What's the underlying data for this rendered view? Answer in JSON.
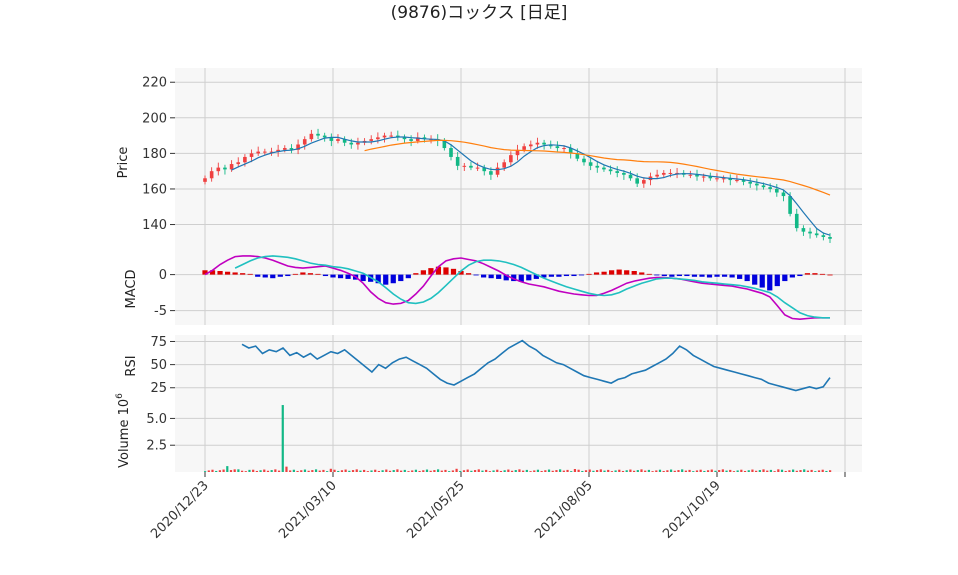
{
  "chart_data": {
    "type": "candlestick",
    "title": "(9876)コックス [日足]",
    "x_tick_labels": [
      "2020/12/23",
      "2021/03/10",
      "2021/05/25",
      "2021/08/05",
      "2021/10/19"
    ],
    "colors": {
      "up": "#ef4040",
      "down": "#12b886",
      "ma_short": "#1f77b4",
      "ma_long": "#ff7f0e",
      "macd": "#c000c0",
      "signal": "#20c0c0",
      "hist_pos": "#dd0000",
      "hist_neg": "#0000dd",
      "rsi": "#1f77b4"
    },
    "panels": {
      "price": {
        "ylabel": "Price",
        "ylim": [
          124,
          228
        ],
        "yticks": [
          140,
          160,
          180,
          200,
          220
        ],
        "series": {
          "close": [
            166,
            170,
            172,
            171,
            174,
            175,
            178,
            180,
            181,
            181,
            181,
            182,
            183,
            182,
            185,
            188,
            191,
            190,
            189,
            187,
            188,
            186,
            185,
            186,
            187,
            188,
            189,
            190,
            190,
            189,
            188,
            187,
            189,
            188,
            188,
            187,
            183,
            178,
            173,
            173,
            172,
            172,
            170,
            168,
            172,
            175,
            179,
            182,
            184,
            185,
            186,
            185,
            184,
            183,
            183,
            180,
            177,
            175,
            173,
            172,
            171,
            170,
            169,
            168,
            166,
            163,
            165,
            167,
            168,
            169,
            169,
            169,
            168,
            168,
            167,
            167,
            166,
            166,
            166,
            165,
            165,
            164,
            163,
            162,
            161,
            160,
            158,
            156,
            146,
            138,
            136,
            135,
            134,
            133,
            132
          ]
        }
      },
      "macd": {
        "ylabel": "MACD",
        "ylim": [
          -7,
          3
        ],
        "yticks": [
          -5,
          0
        ],
        "series": {
          "macd": [
            0,
            0.6,
            1.4,
            2,
            2.5,
            2.6,
            2.6,
            2.5,
            2.3,
            2,
            1.6,
            1.2,
            1,
            0.9,
            1,
            1.1,
            1.2,
            0.9,
            0.6,
            0.2,
            -0.3,
            -1.2,
            -2.4,
            -3.3,
            -3.9,
            -4.1,
            -4,
            -3.6,
            -2.7,
            -1.6,
            -0.2,
            1.1,
            1.9,
            2.2,
            2.3,
            2.1,
            1.9,
            1.5,
            1,
            0.5,
            -0.1,
            -0.6,
            -1,
            -1.3,
            -1.5,
            -1.7,
            -2,
            -2.3,
            -2.5,
            -2.7,
            -2.8,
            -2.9,
            -2.9,
            -2.6,
            -2.2,
            -1.7,
            -1.2,
            -0.9,
            -0.7,
            -0.5,
            -0.4,
            -0.4,
            -0.5,
            -0.6,
            -0.8,
            -1,
            -1.2,
            -1.3,
            -1.4,
            -1.5,
            -1.6,
            -1.8,
            -2,
            -2.3,
            -2.6,
            -3.1,
            -4.3,
            -5.6,
            -6.1,
            -6.2,
            -6.1,
            -6.0,
            -6.0,
            -6.0
          ],
          "signal": [
            null,
            null,
            null,
            null,
            0.9,
            1.4,
            1.9,
            2.3,
            2.5,
            2.6,
            2.5,
            2.4,
            2.2,
            1.9,
            1.6,
            1.4,
            1.3,
            1.1,
            1,
            0.8,
            0.5,
            0.2,
            -0.4,
            -1,
            -1.8,
            -2.7,
            -3.4,
            -3.9,
            -4,
            -3.8,
            -3.3,
            -2.5,
            -1.5,
            -0.5,
            0.5,
            1.3,
            1.8,
            2,
            2,
            1.9,
            1.7,
            1.4,
            1,
            0.5,
            0,
            -0.5,
            -0.9,
            -1.3,
            -1.7,
            -2,
            -2.3,
            -2.6,
            -2.8,
            -2.9,
            -2.8,
            -2.5,
            -2,
            -1.6,
            -1.2,
            -0.9,
            -0.6,
            -0.5,
            -0.5,
            -0.6,
            -0.7,
            -0.8,
            -1,
            -1.1,
            -1.2,
            -1.3,
            -1.4,
            -1.5,
            -1.7,
            -1.9,
            -2.2,
            -2.5,
            -3.1,
            -3.9,
            -4.6,
            -5.3,
            -5.7,
            -5.9,
            -6.0,
            -6.0
          ],
          "hist": [
            0.6,
            0.6,
            0.5,
            0.4,
            0.3,
            0.2,
            0.1,
            -0.3,
            -0.4,
            -0.5,
            -0.3,
            -0.2,
            0.1,
            0.3,
            0.2,
            0.1,
            -0.2,
            -0.4,
            -0.5,
            -0.6,
            -0.7,
            -0.9,
            -1,
            -1.2,
            -1.4,
            -1.2,
            -0.9,
            -0.5,
            0.2,
            0.6,
            0.9,
            1.1,
            1,
            0.8,
            0.5,
            0.2,
            -0.1,
            -0.4,
            -0.5,
            -0.6,
            -0.8,
            -0.9,
            -1,
            -0.8,
            -0.6,
            -0.4,
            -0.3,
            -0.3,
            -0.2,
            -0.2,
            -0.1,
            0.1,
            0.3,
            0.4,
            0.6,
            0.7,
            0.6,
            0.5,
            0.3,
            0.1,
            -0.1,
            -0.2,
            -0.3,
            -0.2,
            -0.2,
            -0.3,
            -0.3,
            -0.4,
            -0.3,
            -0.3,
            -0.4,
            -0.6,
            -0.9,
            -1.4,
            -1.8,
            -2.2,
            -1.6,
            -0.9,
            -0.4,
            -0.2,
            0.2,
            0.2,
            0.1,
            0
          ]
        }
      },
      "rsi": {
        "ylabel": "RSI",
        "ylim": [
          15,
          82
        ],
        "yticks": [
          25,
          50,
          75
        ],
        "series": {
          "rsi": [
            72,
            68,
            70,
            62,
            66,
            64,
            68,
            60,
            63,
            58,
            62,
            56,
            60,
            64,
            62,
            66,
            60,
            54,
            48,
            42,
            50,
            46,
            52,
            56,
            58,
            54,
            50,
            46,
            40,
            34,
            30,
            28,
            32,
            36,
            40,
            46,
            52,
            56,
            62,
            68,
            72,
            76,
            70,
            66,
            60,
            56,
            52,
            50,
            46,
            42,
            38,
            36,
            34,
            32,
            30,
            34,
            36,
            40,
            42,
            44,
            48,
            52,
            56,
            62,
            70,
            66,
            60,
            56,
            52,
            48,
            46,
            44,
            42,
            40,
            38,
            36,
            34,
            30,
            28,
            26,
            24,
            22,
            24,
            26,
            24,
            26,
            36
          ]
        }
      },
      "volume": {
        "ylabel": "Volume",
        "ylabel_exp": "6",
        "ylim": [
          0,
          7.0
        ],
        "yticks": [
          2.5,
          5.0
        ],
        "ytick_labels": [
          "2.5",
          "5.0"
        ]
      }
    }
  }
}
